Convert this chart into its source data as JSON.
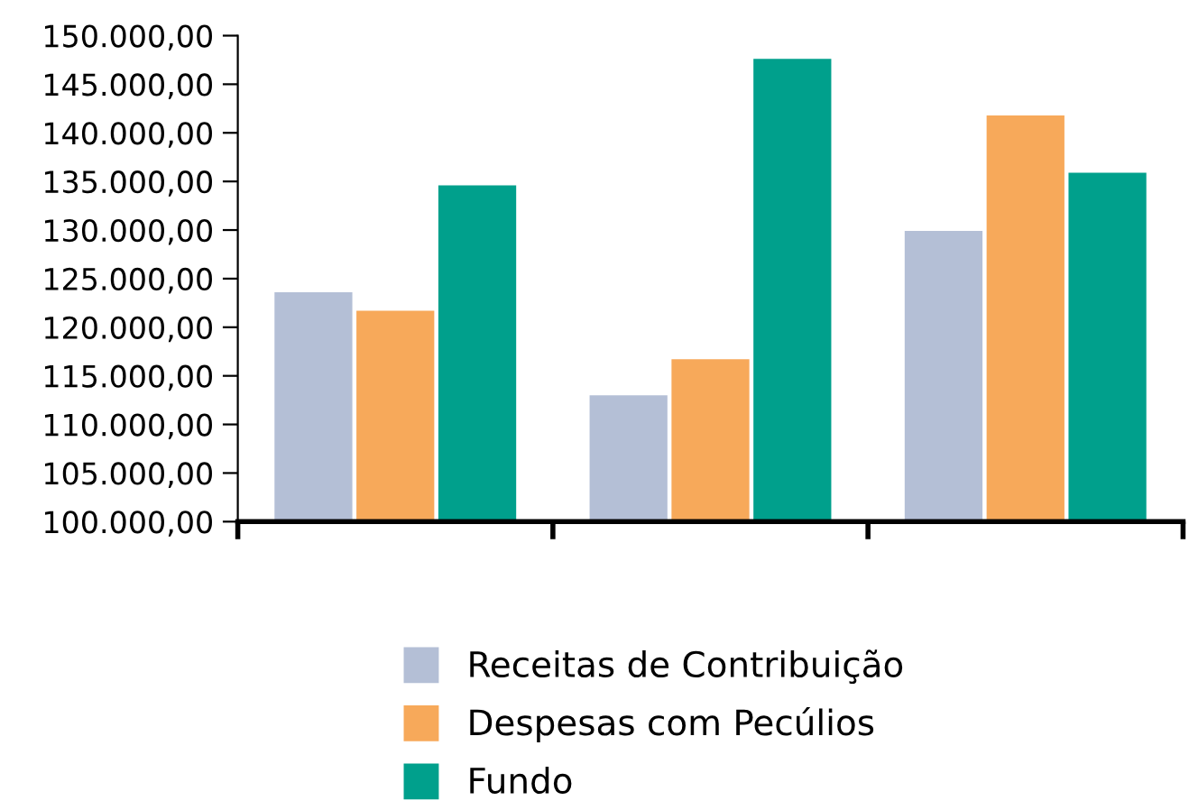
{
  "chart_data": {
    "type": "bar",
    "categories": [
      null,
      null,
      null
    ],
    "series": [
      {
        "name": "Receitas de Contribuição",
        "color": "#b4bfd6",
        "values": [
          123600,
          113000,
          129900
        ]
      },
      {
        "name": "Despesas com Pecúlios",
        "color": "#f7a95a",
        "values": [
          121700,
          116700,
          141800
        ]
      },
      {
        "name": "Fundo",
        "color": "#00a08c",
        "values": [
          134600,
          147600,
          135900
        ]
      }
    ],
    "ylim": [
      100000,
      150000
    ],
    "yticks": [
      {
        "value": 100000,
        "label": "100.000,00"
      },
      {
        "value": 105000,
        "label": "105.000,00"
      },
      {
        "value": 110000,
        "label": "110.000,00"
      },
      {
        "value": 115000,
        "label": "115.000,00"
      },
      {
        "value": 120000,
        "label": "120.000,00"
      },
      {
        "value": 125000,
        "label": "125.000,00"
      },
      {
        "value": 130000,
        "label": "130.000,00"
      },
      {
        "value": 135000,
        "label": "135.000,00"
      },
      {
        "value": 140000,
        "label": "140.000,00"
      },
      {
        "value": 145000,
        "label": "145.000,00"
      },
      {
        "value": 150000,
        "label": "150.000,00"
      }
    ],
    "tick_labels": "y",
    "legend": "bottom",
    "grid": false
  }
}
